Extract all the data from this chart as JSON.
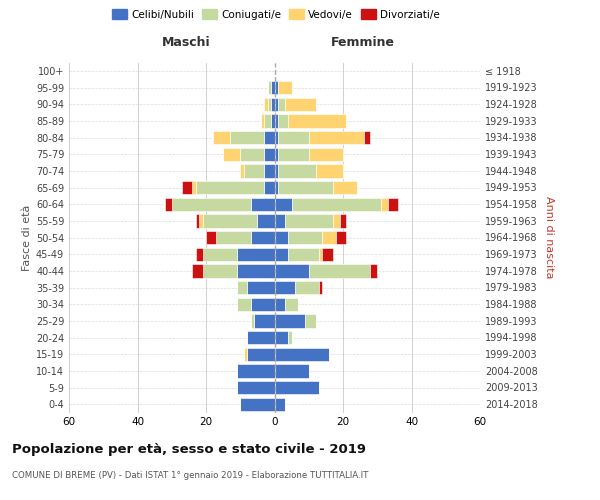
{
  "age_groups_display": [
    "0-4",
    "5-9",
    "10-14",
    "15-19",
    "20-24",
    "25-29",
    "30-34",
    "35-39",
    "40-44",
    "45-49",
    "50-54",
    "55-59",
    "60-64",
    "65-69",
    "70-74",
    "75-79",
    "80-84",
    "85-89",
    "90-94",
    "95-99",
    "100+"
  ],
  "birth_years_display": [
    "2014-2018",
    "2009-2013",
    "2004-2008",
    "1999-2003",
    "1994-1998",
    "1989-1993",
    "1984-1988",
    "1979-1983",
    "1974-1978",
    "1969-1973",
    "1964-1968",
    "1959-1963",
    "1954-1958",
    "1949-1953",
    "1944-1948",
    "1939-1943",
    "1934-1938",
    "1929-1933",
    "1924-1928",
    "1919-1923",
    "≤ 1918"
  ],
  "males": {
    "celibi": [
      10,
      11,
      11,
      8,
      8,
      6,
      7,
      8,
      11,
      11,
      7,
      5,
      7,
      3,
      3,
      3,
      3,
      1,
      1,
      1,
      0
    ],
    "coniugati": [
      0,
      0,
      0,
      0,
      0,
      1,
      4,
      3,
      10,
      10,
      10,
      16,
      23,
      20,
      6,
      7,
      10,
      2,
      1,
      1,
      0
    ],
    "vedovi": [
      0,
      0,
      0,
      1,
      0,
      0,
      0,
      0,
      0,
      0,
      0,
      1,
      0,
      1,
      1,
      5,
      5,
      1,
      1,
      0,
      0
    ],
    "divorziati": [
      0,
      0,
      0,
      0,
      0,
      0,
      0,
      0,
      3,
      2,
      3,
      1,
      2,
      3,
      0,
      0,
      0,
      0,
      0,
      0,
      0
    ]
  },
  "females": {
    "nubili": [
      3,
      13,
      10,
      16,
      4,
      9,
      3,
      6,
      10,
      4,
      4,
      3,
      5,
      1,
      1,
      1,
      1,
      1,
      1,
      1,
      0
    ],
    "coniugate": [
      0,
      0,
      0,
      0,
      1,
      3,
      4,
      7,
      18,
      9,
      10,
      14,
      26,
      16,
      11,
      9,
      9,
      3,
      2,
      0,
      0
    ],
    "vedove": [
      0,
      0,
      0,
      0,
      0,
      0,
      0,
      0,
      0,
      1,
      4,
      2,
      2,
      7,
      8,
      10,
      16,
      17,
      9,
      4,
      0
    ],
    "divorziate": [
      0,
      0,
      0,
      0,
      0,
      0,
      0,
      1,
      2,
      3,
      3,
      2,
      3,
      0,
      0,
      0,
      2,
      0,
      0,
      0,
      0
    ]
  },
  "colors": {
    "celibi": "#4472c4",
    "coniugati": "#c5d9a0",
    "vedovi": "#ffd470",
    "divorziati": "#cc1111"
  },
  "title": "Popolazione per età, sesso e stato civile - 2019",
  "subtitle": "COMUNE DI BREME (PV) - Dati ISTAT 1° gennaio 2019 - Elaborazione TUTTITALIA.IT",
  "ylabel": "Fasce di età",
  "ylabel_right": "Anni di nascita",
  "header_left": "Maschi",
  "header_right": "Femmine",
  "legend_labels": [
    "Celibi/Nubili",
    "Coniugati/e",
    "Vedovi/e",
    "Divorziati/e"
  ],
  "xlim": 60,
  "bg_color": "#ffffff",
  "grid_color": "#cccccc"
}
